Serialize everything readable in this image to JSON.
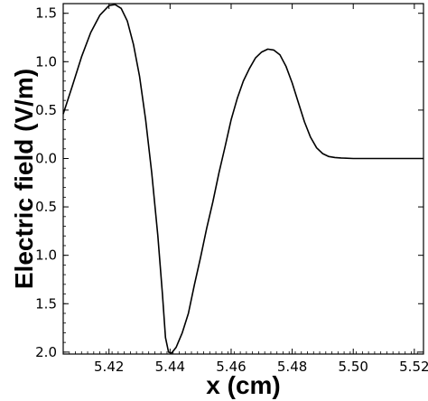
{
  "chart_data": {
    "type": "line",
    "title": "",
    "xlabel": "x (cm)",
    "ylabel": "Electric field (V/m)",
    "xlim": [
      5.405,
      5.523
    ],
    "ylim": [
      -2.02,
      1.6
    ],
    "grid": false,
    "x_ticks": [
      {
        "value": 5.42,
        "label": "5.42"
      },
      {
        "value": 5.44,
        "label": "5.44"
      },
      {
        "value": 5.46,
        "label": "5.46"
      },
      {
        "value": 5.48,
        "label": "5.48"
      },
      {
        "value": 5.5,
        "label": "5.50"
      },
      {
        "value": 5.52,
        "label": "5.52"
      }
    ],
    "y_ticks": [
      {
        "value": 1.5,
        "label": "1.5"
      },
      {
        "value": 1.0,
        "label": "1.0"
      },
      {
        "value": 0.5,
        "label": "0.5"
      },
      {
        "value": 0.0,
        "label": "0.0"
      },
      {
        "value": -0.5,
        "label": "0.5"
      },
      {
        "value": -1.0,
        "label": "1.0"
      },
      {
        "value": -1.5,
        "label": "1.5"
      },
      {
        "value": -2.0,
        "label": "2.0"
      }
    ],
    "series": [
      {
        "color": "#000000",
        "points": [
          [
            5.405,
            0.46
          ],
          [
            5.408,
            0.75
          ],
          [
            5.411,
            1.05
          ],
          [
            5.414,
            1.3
          ],
          [
            5.417,
            1.48
          ],
          [
            5.42,
            1.58
          ],
          [
            5.422,
            1.59
          ],
          [
            5.424,
            1.55
          ],
          [
            5.426,
            1.42
          ],
          [
            5.428,
            1.18
          ],
          [
            5.43,
            0.85
          ],
          [
            5.432,
            0.4
          ],
          [
            5.434,
            -0.15
          ],
          [
            5.436,
            -0.8
          ],
          [
            5.4375,
            -1.4
          ],
          [
            5.4385,
            -1.85
          ],
          [
            5.4395,
            -2.0
          ],
          [
            5.4405,
            -2.01
          ],
          [
            5.442,
            -1.95
          ],
          [
            5.444,
            -1.8
          ],
          [
            5.446,
            -1.6
          ],
          [
            5.448,
            -1.3
          ],
          [
            5.45,
            -1.02
          ],
          [
            5.452,
            -0.72
          ],
          [
            5.454,
            -0.45
          ],
          [
            5.456,
            -0.15
          ],
          [
            5.458,
            0.12
          ],
          [
            5.46,
            0.4
          ],
          [
            5.462,
            0.62
          ],
          [
            5.464,
            0.8
          ],
          [
            5.466,
            0.93
          ],
          [
            5.468,
            1.04
          ],
          [
            5.47,
            1.1
          ],
          [
            5.472,
            1.13
          ],
          [
            5.474,
            1.12
          ],
          [
            5.476,
            1.07
          ],
          [
            5.478,
            0.95
          ],
          [
            5.48,
            0.78
          ],
          [
            5.482,
            0.58
          ],
          [
            5.484,
            0.38
          ],
          [
            5.486,
            0.22
          ],
          [
            5.488,
            0.11
          ],
          [
            5.49,
            0.05
          ],
          [
            5.492,
            0.02
          ],
          [
            5.494,
            0.01
          ],
          [
            5.496,
            0.005
          ],
          [
            5.5,
            0.0
          ],
          [
            5.51,
            0.0
          ],
          [
            5.523,
            0.0
          ]
        ]
      }
    ]
  }
}
